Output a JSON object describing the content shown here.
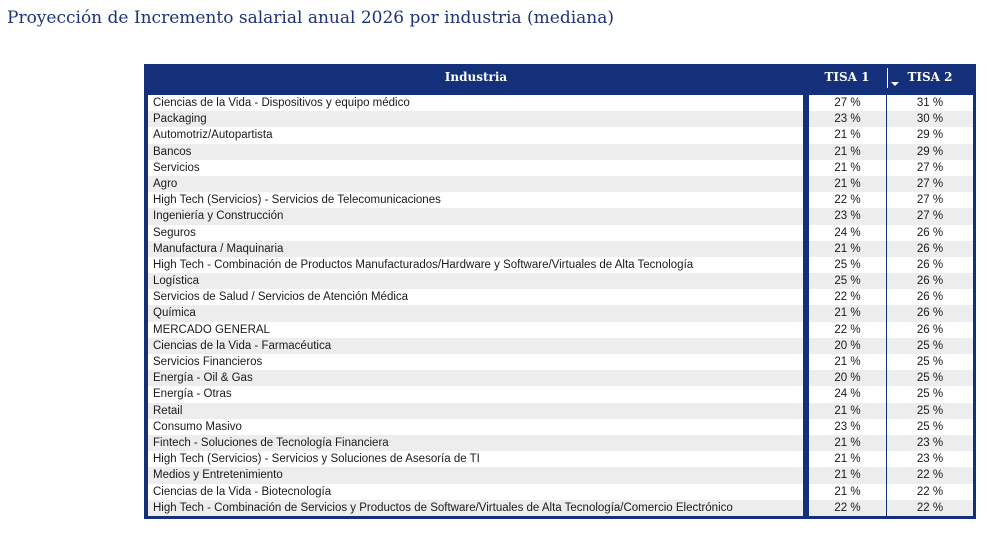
{
  "title": "Proyección de Incremento salarial anual 2026 por industria (mediana)",
  "table": {
    "headers": {
      "industria": "Industria",
      "tisa1": "TISA 1",
      "tisa2": "TISA 2"
    },
    "sort_icon": "sort-descending-icon",
    "rows": [
      {
        "industria": "Ciencias de la Vida - Dispositivos y equipo médico",
        "tisa1": "27 %",
        "tisa2": "31 %"
      },
      {
        "industria": "Packaging",
        "tisa1": "23 %",
        "tisa2": "30 %"
      },
      {
        "industria": "Automotriz/Autopartista",
        "tisa1": "21 %",
        "tisa2": "29 %"
      },
      {
        "industria": "Bancos",
        "tisa1": "21 %",
        "tisa2": "29 %"
      },
      {
        "industria": "Servicios",
        "tisa1": "21 %",
        "tisa2": "27 %"
      },
      {
        "industria": "Agro",
        "tisa1": "21 %",
        "tisa2": "27 %"
      },
      {
        "industria": "High Tech (Servicios) - Servicios de Telecomunicaciones",
        "tisa1": "22 %",
        "tisa2": "27 %"
      },
      {
        "industria": "Ingeniería y Construcción",
        "tisa1": "23 %",
        "tisa2": "27 %"
      },
      {
        "industria": "Seguros",
        "tisa1": "24 %",
        "tisa2": "26 %"
      },
      {
        "industria": "Manufactura / Maquinaria",
        "tisa1": "21 %",
        "tisa2": "26 %"
      },
      {
        "industria": "High Tech - Combinación de Productos Manufacturados/Hardware y Software/Virtuales de Alta Tecnología",
        "tisa1": "25 %",
        "tisa2": "26 %"
      },
      {
        "industria": "Logística",
        "tisa1": "25 %",
        "tisa2": "26 %"
      },
      {
        "industria": "Servicios de Salud / Servicios de Atención Médica",
        "tisa1": "22 %",
        "tisa2": "26 %"
      },
      {
        "industria": "Química",
        "tisa1": "21 %",
        "tisa2": "26 %"
      },
      {
        "industria": "MERCADO GENERAL",
        "tisa1": "22 %",
        "tisa2": "26 %"
      },
      {
        "industria": "Ciencias de la Vida - Farmacéutica",
        "tisa1": "20 %",
        "tisa2": "25 %"
      },
      {
        "industria": "Servicios Financieros",
        "tisa1": "21 %",
        "tisa2": "25 %"
      },
      {
        "industria": "Energía - Oil & Gas",
        "tisa1": "20 %",
        "tisa2": "25 %"
      },
      {
        "industria": "Energía - Otras",
        "tisa1": "24 %",
        "tisa2": "25 %"
      },
      {
        "industria": "Retail",
        "tisa1": "21 %",
        "tisa2": "25 %"
      },
      {
        "industria": "Consumo Masivo",
        "tisa1": "23 %",
        "tisa2": "25 %"
      },
      {
        "industria": "Fintech - Soluciones de Tecnología Financiera",
        "tisa1": "21 %",
        "tisa2": "23 %"
      },
      {
        "industria": "High Tech (Servicios) - Servicios y Soluciones de Asesoría de TI",
        "tisa1": "21 %",
        "tisa2": "23 %"
      },
      {
        "industria": "Medios y Entretenimiento",
        "tisa1": "21 %",
        "tisa2": "22 %"
      },
      {
        "industria": "Ciencias de la Vida - Biotecnología",
        "tisa1": "21 %",
        "tisa2": "22 %"
      },
      {
        "industria": "High Tech - Combinación de Servicios y Productos de Software/Virtuales de Alta Tecnología/Comercio Electrónico",
        "tisa1": "22 %",
        "tisa2": "22 %"
      }
    ]
  },
  "colors": {
    "header_bg": "#14307a",
    "title_text": "#1d3378",
    "alt_row": "#ededed"
  }
}
